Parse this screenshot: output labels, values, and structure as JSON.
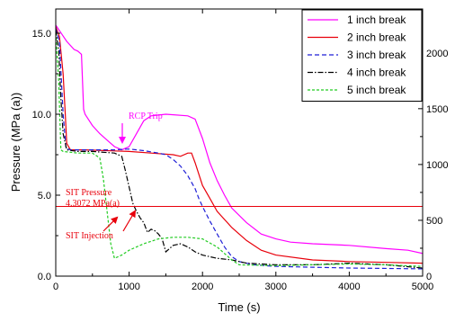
{
  "chart_data": {
    "type": "line",
    "xlabel": "Time (s)",
    "ylabel": "Pressure (MPa (a))",
    "xlim": [
      0,
      5000
    ],
    "ylim": [
      0,
      16.5
    ],
    "y2lim": [
      0,
      2393
    ],
    "x_ticks": [
      {
        "value": 0,
        "label": "0"
      },
      {
        "value": 1000,
        "label": "1000"
      },
      {
        "value": 2000,
        "label": "2000"
      },
      {
        "value": 3000,
        "label": "3000"
      },
      {
        "value": 4000,
        "label": "4000"
      },
      {
        "value": 5000,
        "label": "5000"
      }
    ],
    "y_ticks": [
      {
        "value": 0,
        "label": "0.0"
      },
      {
        "value": 5,
        "label": "5.0"
      },
      {
        "value": 10,
        "label": "10.0"
      },
      {
        "value": 15,
        "label": "15.0"
      }
    ],
    "y2_ticks": [
      {
        "value": 0,
        "label": "0"
      },
      {
        "value": 500,
        "label": "500"
      },
      {
        "value": 1000,
        "label": "1000"
      },
      {
        "value": 1500,
        "label": "1500"
      },
      {
        "value": 2000,
        "label": "2000"
      }
    ],
    "grid": false,
    "legend_position": "top-right",
    "series": [
      {
        "name": "1 inch break",
        "color": "#ff00ff",
        "dash": "solid",
        "points": [
          [
            0,
            15.5
          ],
          [
            60,
            15.1
          ],
          [
            150,
            14.5
          ],
          [
            250,
            14.0
          ],
          [
            300,
            13.9
          ],
          [
            350,
            13.7
          ],
          [
            380,
            10.3
          ],
          [
            400,
            10.0
          ],
          [
            500,
            9.3
          ],
          [
            600,
            8.8
          ],
          [
            700,
            8.4
          ],
          [
            800,
            8.0
          ],
          [
            900,
            7.8
          ],
          [
            950,
            7.9
          ],
          [
            1000,
            8.0
          ],
          [
            1100,
            8.8
          ],
          [
            1200,
            9.6
          ],
          [
            1300,
            9.9
          ],
          [
            1500,
            10.0
          ],
          [
            1800,
            9.9
          ],
          [
            1900,
            9.7
          ],
          [
            2000,
            8.5
          ],
          [
            2100,
            7.0
          ],
          [
            2200,
            5.9
          ],
          [
            2300,
            5.0
          ],
          [
            2400,
            4.2
          ],
          [
            2600,
            3.3
          ],
          [
            2800,
            2.6
          ],
          [
            3000,
            2.3
          ],
          [
            3200,
            2.1
          ],
          [
            3500,
            2.0
          ],
          [
            4000,
            1.9
          ],
          [
            4500,
            1.7
          ],
          [
            4800,
            1.6
          ],
          [
            5000,
            1.4
          ]
        ]
      },
      {
        "name": "2 inch break",
        "color": "#e8000b",
        "dash": "solid",
        "points": [
          [
            0,
            15.4
          ],
          [
            50,
            14.8
          ],
          [
            100,
            12.5
          ],
          [
            130,
            10.0
          ],
          [
            150,
            8.2
          ],
          [
            200,
            7.8
          ],
          [
            400,
            7.8
          ],
          [
            700,
            7.75
          ],
          [
            1000,
            7.7
          ],
          [
            1300,
            7.6
          ],
          [
            1600,
            7.5
          ],
          [
            1700,
            7.4
          ],
          [
            1800,
            7.6
          ],
          [
            1850,
            7.6
          ],
          [
            1900,
            7.0
          ],
          [
            2000,
            5.6
          ],
          [
            2100,
            4.8
          ],
          [
            2200,
            4.0
          ],
          [
            2400,
            3.0
          ],
          [
            2600,
            2.2
          ],
          [
            2800,
            1.6
          ],
          [
            3000,
            1.3
          ],
          [
            3500,
            1.0
          ],
          [
            4000,
            0.9
          ],
          [
            4500,
            0.85
          ],
          [
            5000,
            0.8
          ]
        ]
      },
      {
        "name": "3 inch break",
        "color": "#1f1fd6",
        "dash": "5,3",
        "points": [
          [
            0,
            15.3
          ],
          [
            50,
            14.5
          ],
          [
            100,
            10.0
          ],
          [
            140,
            7.9
          ],
          [
            200,
            7.8
          ],
          [
            500,
            7.8
          ],
          [
            800,
            7.8
          ],
          [
            1000,
            7.85
          ],
          [
            1200,
            7.75
          ],
          [
            1400,
            7.6
          ],
          [
            1500,
            7.5
          ],
          [
            1600,
            7.2
          ],
          [
            1700,
            6.8
          ],
          [
            1800,
            6.2
          ],
          [
            1900,
            5.4
          ],
          [
            1950,
            4.8
          ],
          [
            2000,
            4.3
          ],
          [
            2100,
            3.4
          ],
          [
            2200,
            2.6
          ],
          [
            2300,
            1.8
          ],
          [
            2400,
            1.2
          ],
          [
            2500,
            0.9
          ],
          [
            2700,
            0.7
          ],
          [
            3000,
            0.6
          ],
          [
            3500,
            0.55
          ],
          [
            4000,
            0.5
          ],
          [
            5000,
            0.45
          ]
        ]
      },
      {
        "name": "4 inch break",
        "color": "#000000",
        "dash": "6,2,1.5,2",
        "points": [
          [
            0,
            15.2
          ],
          [
            40,
            14.0
          ],
          [
            70,
            11.0
          ],
          [
            100,
            8.8
          ],
          [
            150,
            7.8
          ],
          [
            300,
            7.7
          ],
          [
            500,
            7.7
          ],
          [
            800,
            7.6
          ],
          [
            900,
            7.4
          ],
          [
            950,
            6.5
          ],
          [
            1000,
            5.5
          ],
          [
            1050,
            4.5
          ],
          [
            1100,
            4.0
          ],
          [
            1150,
            3.6
          ],
          [
            1200,
            3.3
          ],
          [
            1250,
            2.7
          ],
          [
            1300,
            2.9
          ],
          [
            1350,
            2.8
          ],
          [
            1400,
            2.6
          ],
          [
            1450,
            2.3
          ],
          [
            1500,
            1.5
          ],
          [
            1600,
            1.9
          ],
          [
            1700,
            2.0
          ],
          [
            1800,
            1.8
          ],
          [
            1900,
            1.5
          ],
          [
            2000,
            1.3
          ],
          [
            2200,
            1.1
          ],
          [
            2400,
            1.0
          ],
          [
            2600,
            0.8
          ],
          [
            3000,
            0.7
          ],
          [
            3500,
            0.7
          ],
          [
            4000,
            0.8
          ],
          [
            4500,
            0.7
          ],
          [
            5000,
            0.5
          ]
        ]
      },
      {
        "name": "5 inch break",
        "color": "#22cc22",
        "dash": "3,2",
        "points": [
          [
            0,
            15.0
          ],
          [
            40,
            12.0
          ],
          [
            70,
            7.8
          ],
          [
            100,
            7.7
          ],
          [
            300,
            7.6
          ],
          [
            500,
            7.6
          ],
          [
            600,
            7.3
          ],
          [
            650,
            6.0
          ],
          [
            700,
            4.0
          ],
          [
            750,
            2.0
          ],
          [
            800,
            1.1
          ],
          [
            900,
            1.3
          ],
          [
            1000,
            1.6
          ],
          [
            1200,
            2.0
          ],
          [
            1400,
            2.3
          ],
          [
            1600,
            2.4
          ],
          [
            1800,
            2.4
          ],
          [
            2000,
            2.3
          ],
          [
            2200,
            1.8
          ],
          [
            2400,
            1.0
          ],
          [
            2500,
            0.7
          ],
          [
            3000,
            0.65
          ],
          [
            3500,
            0.7
          ],
          [
            4000,
            0.75
          ],
          [
            4500,
            0.7
          ],
          [
            5000,
            0.6
          ]
        ]
      }
    ],
    "reference_line": {
      "y": 4.3072,
      "color": "#e8000b"
    },
    "annotations": {
      "rcp_trip": {
        "text": "RCP Trip",
        "color": "#ff00ff",
        "x": 900,
        "y": 7.9
      },
      "sit_pressure": {
        "text": "SIT Pressure",
        "color": "#e8000b"
      },
      "sit_pressure_value": {
        "text": "4.3072 MPa(a)",
        "color": "#e8000b"
      },
      "sit_injection": {
        "text": "SIT Injection",
        "color": "#e8000b"
      },
      "sit_arrow_targets": [
        [
          720,
          3.5
        ],
        [
          1060,
          3.4
        ]
      ]
    }
  }
}
